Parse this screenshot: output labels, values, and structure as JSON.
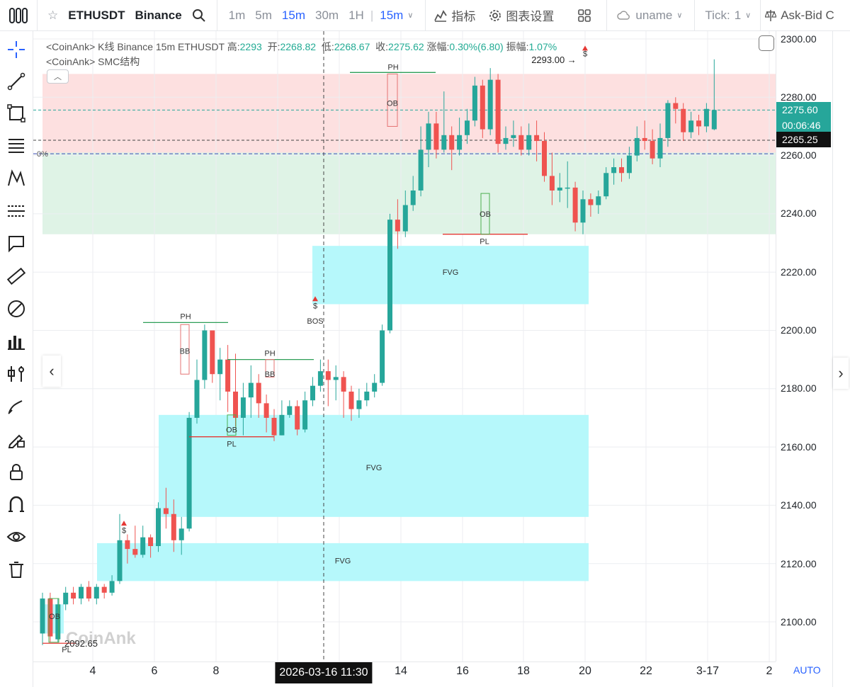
{
  "toolbar": {
    "symbol": "ETHUSDT",
    "exchange": "Binance",
    "intervals": [
      "1m",
      "5m",
      "15m",
      "30m",
      "1H"
    ],
    "active_interval": "15m",
    "indicators": "指标",
    "chart_settings": "图表设置",
    "user": "uname",
    "tick": "Tick:",
    "tick_value": "1",
    "ask_bid": "Ask-Bid C"
  },
  "legend": {
    "line1_prefix": "<CoinAnk> K线  Binance 15m ETHUSDT",
    "high_label": "高:",
    "high": "2293",
    "open_label": "开:",
    "open": "2268.82",
    "low_label": "低:",
    "low": "2268.67",
    "close_label": "收:",
    "close": "2275.62",
    "change_label": "涨幅:",
    "change": "0.30%(6.80)",
    "amp_label": "振幅:",
    "amp": "1.07%",
    "line2": "<CoinAnk> SMC结构"
  },
  "price_axis": {
    "labels": [
      "2300.00",
      "2280.00",
      "2260.00",
      "2240.00",
      "2220.00",
      "2200.00",
      "2180.00",
      "2160.00",
      "2140.00",
      "2120.00",
      "2100.00"
    ],
    "current_price": "2275.60",
    "countdown": "00:06:46",
    "crosshair_price": "2265.25"
  },
  "time_axis": {
    "labels": [
      "4",
      "6",
      "8",
      "14",
      "16",
      "18",
      "20",
      "22",
      "3-17",
      "2"
    ],
    "crosshair_time": "2026-03-16 11:30",
    "auto": "AUTO"
  },
  "annotations": {
    "high_marker": "2293.00",
    "low_marker": "2092.65",
    "left_pct": "0%",
    "dollar": "$",
    "ph": "PH",
    "pl": "PL",
    "ob": "OB",
    "bb": "BB",
    "bos": "BOS",
    "fvg": "FVG"
  },
  "watermark": "CoinAnk",
  "colors": {
    "up": "#26a69a",
    "down": "#ef5350",
    "accent": "#2962ff",
    "fvg": "#b6f8fb",
    "premium": "#fde0e0",
    "discount": "#dff3e6"
  },
  "chart_data": {
    "type": "candlestick",
    "y_range": [
      2090,
      2302
    ],
    "candles": [
      [
        2096,
        2108,
        2092,
        2110
      ],
      [
        2108,
        2095,
        2093,
        2110
      ],
      [
        2094,
        2106,
        2093,
        2108
      ],
      [
        2106,
        2110,
        2104,
        2112
      ],
      [
        2110,
        2108,
        2106,
        2112
      ],
      [
        2108,
        2112,
        2106,
        2113
      ],
      [
        2112,
        2108,
        2107,
        2114
      ],
      [
        2108,
        2112,
        2106,
        2113
      ],
      [
        2112,
        2110,
        2108,
        2113
      ],
      [
        2110,
        2114,
        2109,
        2116
      ],
      [
        2114,
        2128,
        2113,
        2137
      ],
      [
        2128,
        2125,
        2120,
        2130
      ],
      [
        2125,
        2123,
        2122,
        2133
      ],
      [
        2123,
        2129,
        2122,
        2133
      ],
      [
        2129,
        2126,
        2122,
        2130
      ],
      [
        2126,
        2139,
        2124,
        2141
      ],
      [
        2139,
        2137,
        2132,
        2146
      ],
      [
        2137,
        2128,
        2124,
        2142
      ],
      [
        2128,
        2132,
        2123,
        2136
      ],
      [
        2132,
        2170,
        2131,
        2172
      ],
      [
        2170,
        2183,
        2168,
        2190
      ],
      [
        2183,
        2200,
        2180,
        2202
      ],
      [
        2200,
        2185,
        2182,
        2200
      ],
      [
        2185,
        2190,
        2176,
        2194
      ],
      [
        2190,
        2179,
        2172,
        2195
      ],
      [
        2179,
        2170,
        2167,
        2192
      ],
      [
        2170,
        2177,
        2164,
        2182
      ],
      [
        2177,
        2182,
        2170,
        2188
      ],
      [
        2182,
        2175,
        2170,
        2185
      ],
      [
        2175,
        2170,
        2165,
        2178
      ],
      [
        2170,
        2164,
        2162,
        2173
      ],
      [
        2164,
        2171,
        2164,
        2176
      ],
      [
        2171,
        2174,
        2170,
        2176
      ],
      [
        2174,
        2166,
        2164,
        2176
      ],
      [
        2166,
        2176,
        2165,
        2179
      ],
      [
        2176,
        2181,
        2174,
        2184
      ],
      [
        2181,
        2186,
        2179,
        2190
      ],
      [
        2186,
        2183,
        2174,
        2190
      ],
      [
        2183,
        2184,
        2176,
        2188
      ],
      [
        2184,
        2179,
        2170,
        2186
      ],
      [
        2179,
        2173,
        2169,
        2181
      ],
      [
        2173,
        2176,
        2170,
        2180
      ],
      [
        2176,
        2179,
        2174,
        2182
      ],
      [
        2179,
        2182,
        2177,
        2185
      ],
      [
        2182,
        2200,
        2181,
        2202
      ],
      [
        2200,
        2238,
        2199,
        2240
      ],
      [
        2238,
        2234,
        2228,
        2245
      ],
      [
        2234,
        2243,
        2232,
        2248
      ],
      [
        2243,
        2248,
        2241,
        2253
      ],
      [
        2248,
        2262,
        2246,
        2270
      ],
      [
        2262,
        2271,
        2256,
        2275
      ],
      [
        2271,
        2262,
        2259,
        2275
      ],
      [
        2262,
        2267,
        2261,
        2282
      ],
      [
        2267,
        2262,
        2255,
        2270
      ],
      [
        2262,
        2267,
        2260,
        2273
      ],
      [
        2267,
        2272,
        2264,
        2276
      ],
      [
        2272,
        2284,
        2270,
        2287
      ],
      [
        2284,
        2269,
        2266,
        2286
      ],
      [
        2269,
        2286,
        2267,
        2290
      ],
      [
        2286,
        2264,
        2261,
        2288
      ],
      [
        2264,
        2266,
        2262,
        2270
      ],
      [
        2266,
        2267,
        2263,
        2272
      ],
      [
        2267,
        2262,
        2260,
        2270
      ],
      [
        2262,
        2267,
        2260,
        2271
      ],
      [
        2267,
        2265,
        2258,
        2272
      ],
      [
        2265,
        2253,
        2251,
        2268
      ],
      [
        2253,
        2248,
        2243,
        2261
      ],
      [
        2248,
        2249,
        2244,
        2254
      ],
      [
        2249,
        2249,
        2242,
        2258
      ],
      [
        2249,
        2237,
        2234,
        2251
      ],
      [
        2237,
        2245,
        2233,
        2248
      ],
      [
        2245,
        2243,
        2239,
        2247
      ],
      [
        2243,
        2246,
        2240,
        2248
      ],
      [
        2246,
        2254,
        2245,
        2256
      ],
      [
        2254,
        2256,
        2250,
        2259
      ],
      [
        2256,
        2254,
        2251,
        2259
      ],
      [
        2254,
        2260,
        2252,
        2263
      ],
      [
        2260,
        2266,
        2258,
        2270
      ],
      [
        2266,
        2265,
        2262,
        2272
      ],
      [
        2265,
        2259,
        2257,
        2269
      ],
      [
        2259,
        2266,
        2256,
        2271
      ],
      [
        2266,
        2278,
        2263,
        2279
      ],
      [
        2278,
        2276,
        2271,
        2280
      ],
      [
        2276,
        2268,
        2265,
        2278
      ],
      [
        2268,
        2272,
        2266,
        2275
      ],
      [
        2272,
        2270,
        2267,
        2274
      ],
      [
        2270,
        2276,
        2268,
        2278
      ],
      [
        2269,
        2275.62,
        2268.67,
        2293
      ]
    ]
  }
}
